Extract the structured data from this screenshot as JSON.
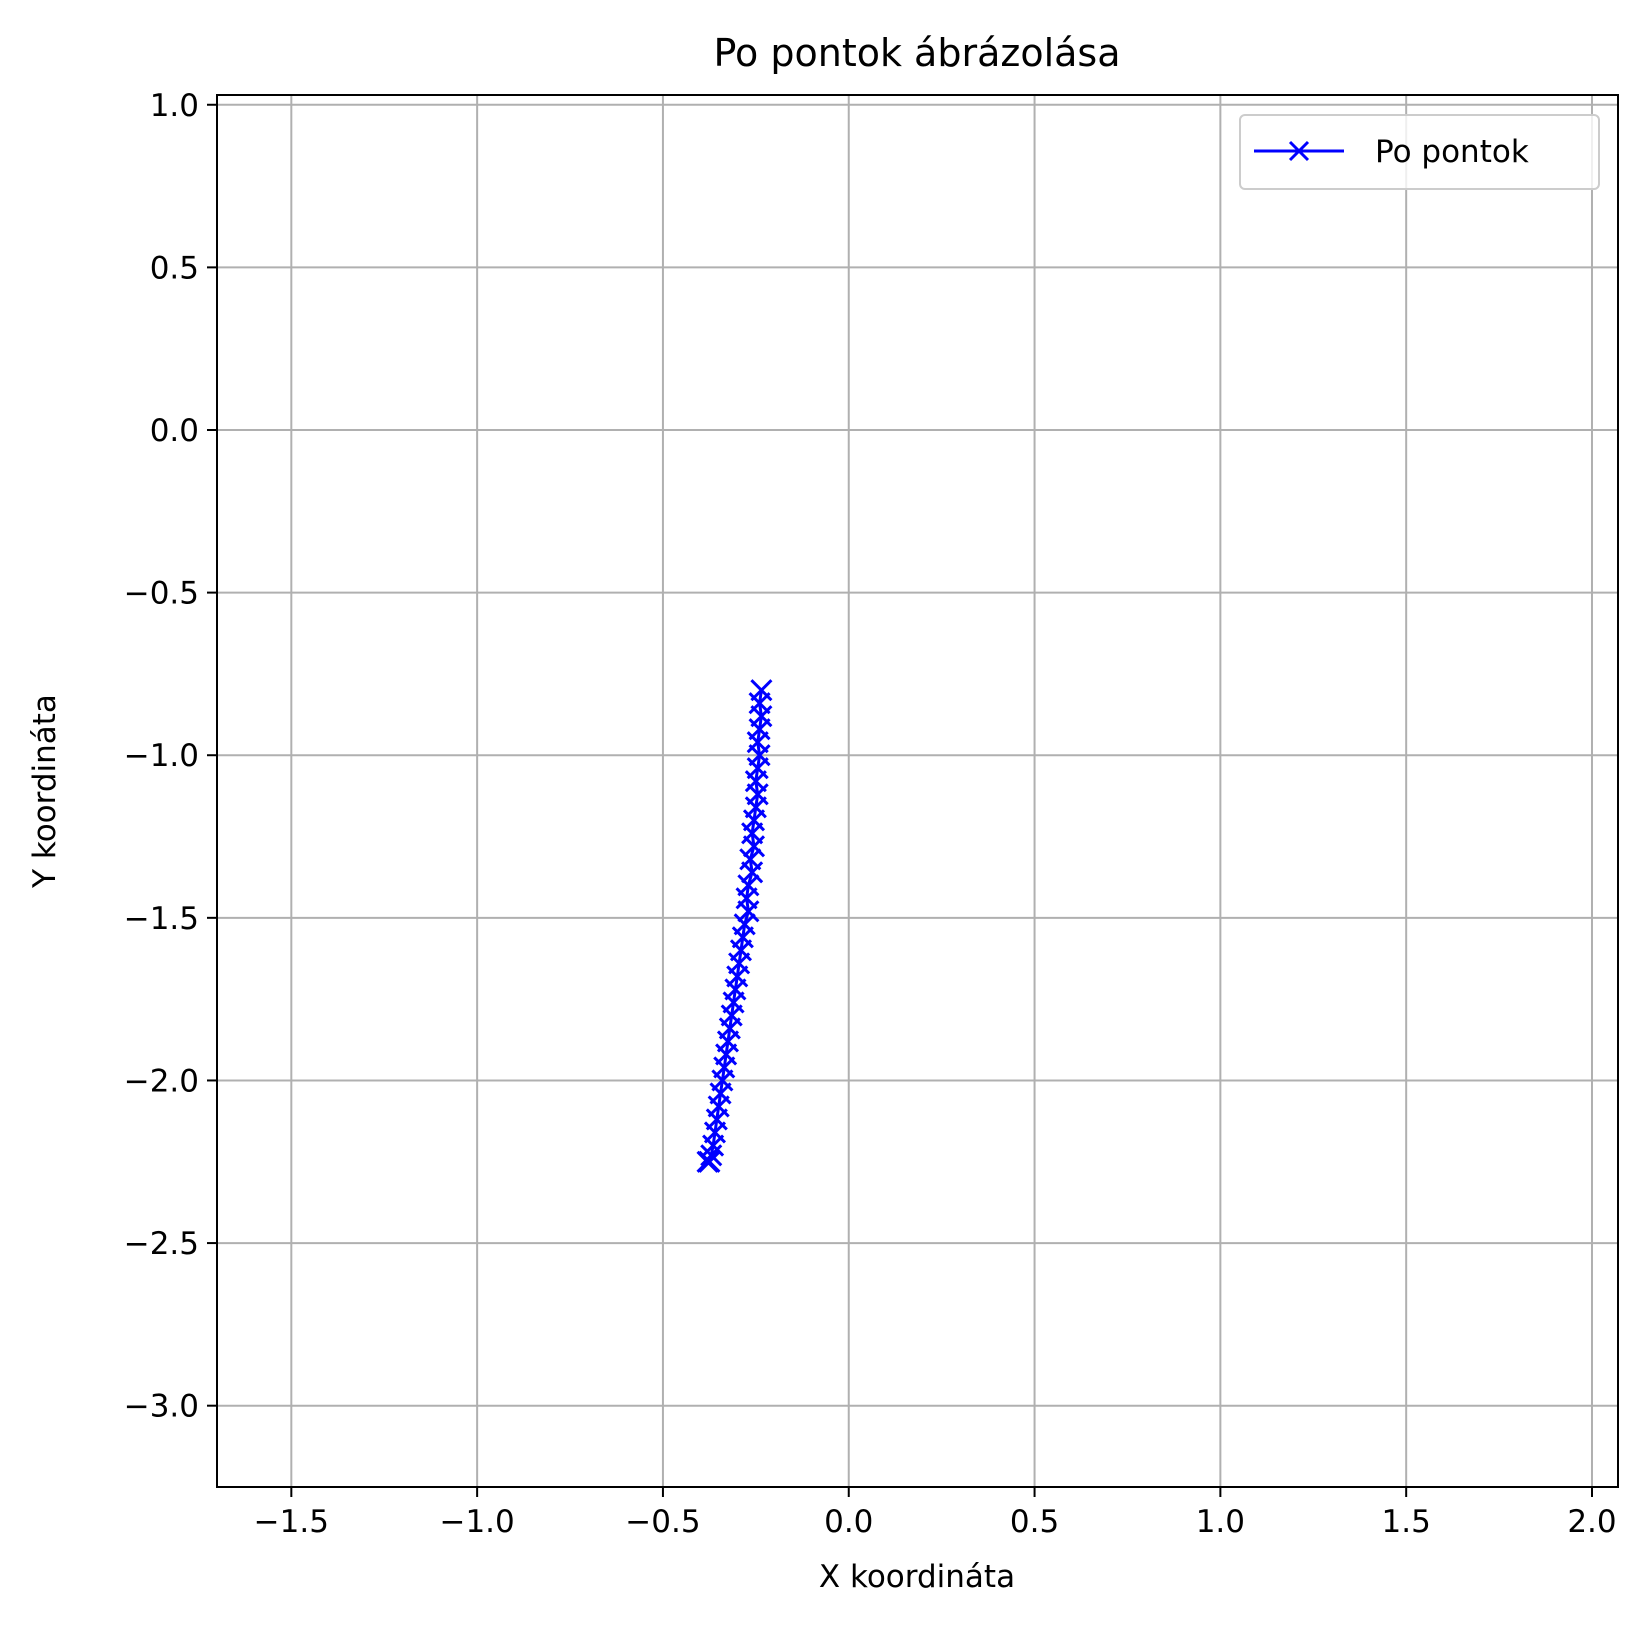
{
  "chart_data": {
    "type": "line",
    "title": "Po pontok ábrázolása",
    "xlabel": "X koordináta",
    "ylabel": "Y koordináta",
    "xlim": [
      -1.7,
      2.07
    ],
    "ylim": [
      -3.25,
      1.03
    ],
    "xticks": [
      -1.5,
      -1.0,
      -0.5,
      0.0,
      0.5,
      1.0,
      1.5,
      2.0
    ],
    "xtick_labels": [
      "−1.5",
      "−1.0",
      "−0.5",
      "0.0",
      "0.5",
      "1.0",
      "1.5",
      "2.0"
    ],
    "yticks": [
      1.0,
      0.5,
      0.0,
      -0.5,
      -1.0,
      -1.5,
      -2.0,
      -2.5,
      -3.0
    ],
    "ytick_labels": [
      "1.0",
      "0.5",
      "0.0",
      "−0.5",
      "−1.0",
      "−1.5",
      "−2.0",
      "−2.5",
      "−3.0"
    ],
    "grid": true,
    "legend_position": "top-right",
    "series": [
      {
        "name": "Po pontok",
        "color": "#0000ff",
        "marker": "x",
        "x": [
          -0.235,
          -0.24,
          -0.235,
          -0.24,
          -0.245,
          -0.24,
          -0.245,
          -0.25,
          -0.245,
          -0.25,
          -0.255,
          -0.26,
          -0.255,
          -0.265,
          -0.26,
          -0.27,
          -0.275,
          -0.27,
          -0.28,
          -0.285,
          -0.29,
          -0.295,
          -0.3,
          -0.305,
          -0.31,
          -0.315,
          -0.32,
          -0.325,
          -0.33,
          -0.335,
          -0.34,
          -0.345,
          -0.35,
          -0.355,
          -0.36,
          -0.365,
          -0.37,
          -0.375,
          -0.38
        ],
        "y": [
          -0.8,
          -0.84,
          -0.88,
          -0.92,
          -0.96,
          -1.0,
          -1.04,
          -1.08,
          -1.12,
          -1.16,
          -1.2,
          -1.24,
          -1.28,
          -1.32,
          -1.36,
          -1.4,
          -1.44,
          -1.48,
          -1.52,
          -1.56,
          -1.6,
          -1.64,
          -1.68,
          -1.72,
          -1.76,
          -1.8,
          -1.84,
          -1.88,
          -1.92,
          -1.96,
          -2.0,
          -2.04,
          -2.08,
          -2.12,
          -2.16,
          -2.2,
          -2.23,
          -2.25,
          -2.25
        ]
      }
    ]
  }
}
